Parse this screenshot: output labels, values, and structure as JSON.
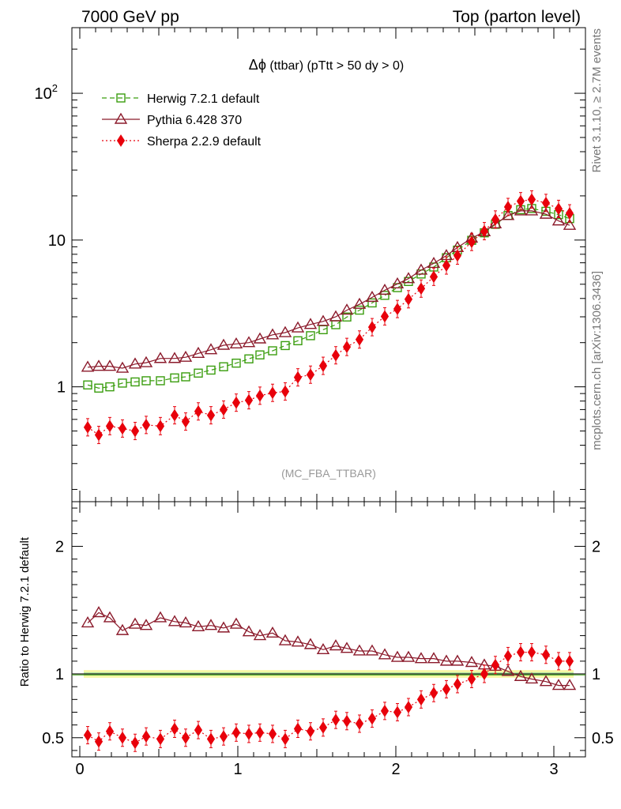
{
  "header": {
    "left": "7000 GeV pp",
    "right": "Top (parton level)"
  },
  "side": {
    "rivet": "Rivet 3.1.10, ≥ 2.7M events",
    "mcplots": "mcplots.cern.ch [arXiv:1306.3436]"
  },
  "colors": {
    "herwig": "#3a9d0e",
    "pythia": "#8b1a2b",
    "sherpa": "#e8000b",
    "band_outer": "#f5f59a",
    "band_inner": "#8ee0a0"
  },
  "chart_data": [
    {
      "type": "line",
      "title": "Δφ (ttbar) (pTtt > 50 dy > 0)",
      "title_phi": "Δϕ",
      "title_rest": " (ttbar) (pTtt > 50 dy > 0)",
      "watermark": "(MC_FBA_TTBAR)",
      "yscale": "log",
      "xlim": [
        -0.05,
        3.2
      ],
      "ylim": [
        0.165,
        280
      ],
      "yticks": [
        {
          "value": 1,
          "label": "1"
        },
        {
          "value": 10,
          "label": "10"
        },
        {
          "value": 100,
          "label": "10",
          "sup": "2"
        }
      ],
      "legend_position": "top-left",
      "x": [
        0.05,
        0.12,
        0.19,
        0.27,
        0.35,
        0.42,
        0.51,
        0.6,
        0.67,
        0.75,
        0.83,
        0.91,
        0.99,
        1.07,
        1.14,
        1.22,
        1.3,
        1.38,
        1.46,
        1.54,
        1.62,
        1.69,
        1.77,
        1.85,
        1.93,
        2.01,
        2.08,
        2.16,
        2.24,
        2.32,
        2.39,
        2.48,
        2.56,
        2.63,
        2.71,
        2.79,
        2.86,
        2.95,
        3.03,
        3.1
      ],
      "series": [
        {
          "name": "Herwig 7.2.1 default",
          "key": "herwig",
          "style": "dashed",
          "marker": "square",
          "values": [
            1.03,
            0.98,
            1.0,
            1.06,
            1.08,
            1.1,
            1.1,
            1.15,
            1.17,
            1.24,
            1.3,
            1.37,
            1.45,
            1.55,
            1.65,
            1.76,
            1.91,
            2.06,
            2.23,
            2.45,
            2.65,
            2.99,
            3.33,
            3.73,
            4.2,
            4.74,
            5.22,
            5.87,
            6.55,
            7.58,
            8.54,
            9.96,
            11.2,
            12.8,
            14.7,
            16.1,
            16.4,
            15.7,
            14.9,
            14.0
          ]
        },
        {
          "name": "Pythia 6.428 370",
          "key": "pythia",
          "style": "solid",
          "marker": "triangle",
          "values": [
            1.36,
            1.38,
            1.38,
            1.34,
            1.43,
            1.46,
            1.56,
            1.56,
            1.59,
            1.69,
            1.79,
            1.92,
            1.96,
            2.0,
            2.12,
            2.26,
            2.34,
            2.52,
            2.66,
            2.79,
            3.0,
            3.33,
            3.65,
            4.07,
            4.55,
            5.03,
            5.46,
            6.24,
            6.93,
            7.84,
            8.9,
            10.3,
            11.4,
            12.9,
            14.7,
            15.8,
            15.8,
            15.0,
            13.5,
            12.6
          ]
        },
        {
          "name": "Sherpa 2.2.9 default",
          "key": "sherpa",
          "style": "dotted",
          "marker": "diamond",
          "values": [
            0.53,
            0.47,
            0.54,
            0.52,
            0.5,
            0.55,
            0.54,
            0.64,
            0.58,
            0.68,
            0.64,
            0.7,
            0.78,
            0.81,
            0.87,
            0.91,
            0.93,
            1.16,
            1.21,
            1.39,
            1.64,
            1.87,
            2.1,
            2.55,
            3.02,
            3.39,
            3.95,
            4.67,
            5.62,
            6.71,
            7.84,
            9.71,
            11.5,
            13.8,
            16.8,
            18.4,
            18.9,
            17.9,
            16.3,
            15.2
          ]
        }
      ]
    },
    {
      "type": "line",
      "ylabel": "Ratio to Herwig 7.2.1 default",
      "xlim": [
        -0.05,
        3.2
      ],
      "ylim": [
        0.35,
        2.35
      ],
      "xticks": [
        {
          "value": 0,
          "label": "0"
        },
        {
          "value": 1,
          "label": "1"
        },
        {
          "value": 2,
          "label": "2"
        },
        {
          "value": 3,
          "label": "3"
        }
      ],
      "yticks": [
        {
          "value": 0.5,
          "label": "0.5"
        },
        {
          "value": 1,
          "label": "1"
        },
        {
          "value": 2,
          "label": "2"
        }
      ],
      "reference": 1.0,
      "series": [
        {
          "name": "Pythia 6.428 370",
          "key": "pythia",
          "style": "solid",
          "marker": "triangle",
          "values": [
            1.4,
            1.48,
            1.44,
            1.34,
            1.39,
            1.38,
            1.44,
            1.41,
            1.4,
            1.37,
            1.38,
            1.36,
            1.39,
            1.33,
            1.3,
            1.32,
            1.26,
            1.25,
            1.23,
            1.19,
            1.22,
            1.2,
            1.18,
            1.18,
            1.15,
            1.13,
            1.13,
            1.12,
            1.12,
            1.1,
            1.1,
            1.09,
            1.07,
            1.06,
            1.02,
            0.98,
            0.96,
            0.94,
            0.91,
            0.91
          ]
        },
        {
          "name": "Sherpa 2.2.9 default",
          "key": "sherpa",
          "style": "dotted",
          "marker": "diamond",
          "values": [
            0.52,
            0.47,
            0.55,
            0.5,
            0.46,
            0.51,
            0.49,
            0.57,
            0.5,
            0.56,
            0.49,
            0.51,
            0.54,
            0.53,
            0.54,
            0.53,
            0.49,
            0.57,
            0.55,
            0.58,
            0.64,
            0.63,
            0.61,
            0.65,
            0.71,
            0.7,
            0.74,
            0.8,
            0.85,
            0.88,
            0.92,
            0.96,
            1.0,
            1.07,
            1.14,
            1.17,
            1.17,
            1.15,
            1.1,
            1.1
          ]
        }
      ]
    }
  ]
}
